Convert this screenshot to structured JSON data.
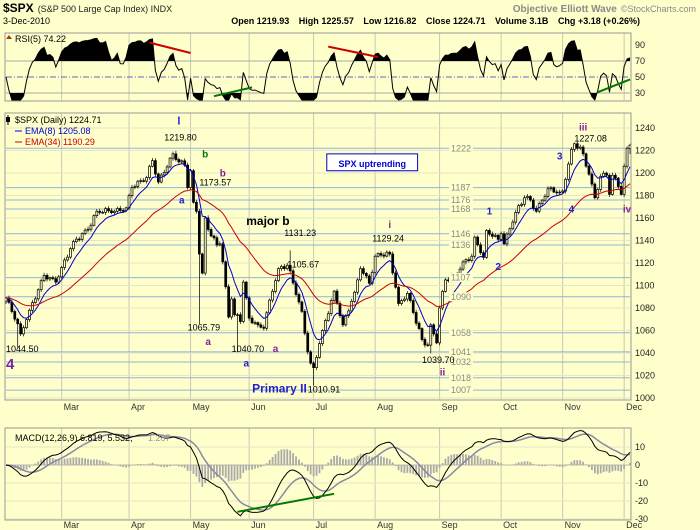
{
  "header": {
    "symbol": "$SPX",
    "description": "(S&P 500 Large Cap Index) INDX",
    "date": "3-Dec-2010",
    "quote_items": [
      {
        "label": "Open",
        "value": "1219.93"
      },
      {
        "label": "High",
        "value": "1225.57"
      },
      {
        "label": "Low",
        "value": "1216.82"
      },
      {
        "label": "Close",
        "value": "1224.71"
      },
      {
        "label": "Volume",
        "value": "3.1B"
      },
      {
        "label": "Chg",
        "value": "+3.18 (+0.26%)"
      }
    ],
    "watermark": "Objective Elliott Wave",
    "credit": "©StockCharts.com"
  },
  "colors": {
    "background": "#FFFFCC",
    "panel_border": "#999999",
    "grid_vertical": "#C9C9B2",
    "grid_horizontal": "#E6E6C6",
    "pivot_line": "#8FB4D9",
    "pivot_label": "#888888",
    "candle": "#000000",
    "ema8": "#0000CC",
    "ema34": "#CC0000",
    "rsi_line": "#000000",
    "rsi_fill": "#000000",
    "macd_line": "#000000",
    "macd_signal": "#8888AA",
    "macd_hist": "#AAAAAA",
    "wave_blue": "#2222CC",
    "wave_green": "#007700",
    "wave_purple": "#882299"
  },
  "chart_data": [
    {
      "panel": "rsi",
      "type": "line",
      "title": "RSI(5) 74.22",
      "last_value": 74.22,
      "ylim": [
        0,
        100
      ],
      "yticks": [
        90,
        70,
        50,
        30
      ],
      "overbought": 70,
      "oversold": 30,
      "midline": 50,
      "trendlines": [
        {
          "color": "#CC0000",
          "points": [
            [
              49,
              93
            ],
            [
              63,
              80
            ]
          ]
        },
        {
          "color": "#CC0000",
          "points": [
            [
              110,
              88
            ],
            [
              127,
              75
            ]
          ]
        },
        {
          "color": "#007700",
          "points": [
            [
              71,
              26
            ],
            [
              84,
              37
            ]
          ]
        },
        {
          "color": "#007700",
          "points": [
            [
              202,
              31
            ],
            [
              213,
              47
            ]
          ]
        }
      ]
    },
    {
      "panel": "price",
      "type": "candlestick",
      "title": "$SPX (Daily) 1224.71",
      "legend": [
        {
          "label": "$SPX (Daily) 1224.71",
          "color": "#000000"
        },
        {
          "label": "EMA(8) 1205.08",
          "color": "#0000CC"
        },
        {
          "label": "EMA(34) 1190.29",
          "color": "#CC0000"
        }
      ],
      "ema_periods": [
        8,
        34
      ],
      "ylim": [
        1000,
        1240
      ],
      "ytick_step": 20,
      "total_days": 214,
      "months": {
        "labels": [
          "Mar",
          "Apr",
          "May",
          "Jun",
          "Jul",
          "Aug",
          "Sep",
          "Oct",
          "Nov",
          "Dec"
        ],
        "day_index": [
          19,
          42,
          63,
          83,
          105,
          126,
          148,
          169,
          190,
          211
        ]
      },
      "anchors": [
        [
          0,
          1089
        ],
        [
          4,
          1066
        ],
        [
          5,
          1057
        ],
        [
          8,
          1078
        ],
        [
          13,
          1109
        ],
        [
          17,
          1103
        ],
        [
          19,
          1116
        ],
        [
          23,
          1139
        ],
        [
          28,
          1150
        ],
        [
          31,
          1166
        ],
        [
          37,
          1166
        ],
        [
          41,
          1169
        ],
        [
          43,
          1187
        ],
        [
          48,
          1196
        ],
        [
          50,
          1211
        ],
        [
          52,
          1192
        ],
        [
          57,
          1217
        ],
        [
          58,
          1212
        ],
        [
          61,
          1207
        ],
        [
          62,
          1187
        ],
        [
          63,
          1202
        ],
        [
          64,
          1174
        ],
        [
          65,
          1166
        ],
        [
          66,
          1128
        ],
        [
          67,
          1111
        ],
        [
          68,
          1160
        ],
        [
          70,
          1144
        ],
        [
          72,
          1136
        ],
        [
          73,
          1137
        ],
        [
          74,
          1121
        ],
        [
          76,
          1072
        ],
        [
          77,
          1088
        ],
        [
          78,
          1074
        ],
        [
          79,
          1074
        ],
        [
          80,
          1068
        ],
        [
          81,
          1103
        ],
        [
          82,
          1089
        ],
        [
          83,
          1071
        ],
        [
          86,
          1065
        ],
        [
          88,
          1062
        ],
        [
          90,
          1087
        ],
        [
          93,
          1115
        ],
        [
          96,
          1118
        ],
        [
          97,
          1113
        ],
        [
          99,
          1092
        ],
        [
          101,
          1077
        ],
        [
          103,
          1041
        ],
        [
          104,
          1031
        ],
        [
          105,
          1027
        ],
        [
          108,
          1060
        ],
        [
          112,
          1095
        ],
        [
          115,
          1065
        ],
        [
          119,
          1094
        ],
        [
          121,
          1115
        ],
        [
          124,
          1102
        ],
        [
          126,
          1126
        ],
        [
          128,
          1127
        ],
        [
          131,
          1128
        ],
        [
          134,
          1084
        ],
        [
          137,
          1093
        ],
        [
          139,
          1076
        ],
        [
          142,
          1052
        ],
        [
          144,
          1047
        ],
        [
          145,
          1065
        ],
        [
          147,
          1049
        ],
        [
          148,
          1080
        ],
        [
          150,
          1105
        ],
        [
          154,
          1110
        ],
        [
          156,
          1121
        ],
        [
          159,
          1126
        ],
        [
          160,
          1143
        ],
        [
          163,
          1125
        ],
        [
          164,
          1149
        ],
        [
          168,
          1141
        ],
        [
          169,
          1146
        ],
        [
          170,
          1137
        ],
        [
          174,
          1165
        ],
        [
          177,
          1178
        ],
        [
          179,
          1176
        ],
        [
          181,
          1166
        ],
        [
          185,
          1186
        ],
        [
          189,
          1183
        ],
        [
          190,
          1184
        ],
        [
          193,
          1221
        ],
        [
          194,
          1226
        ],
        [
          196,
          1223
        ],
        [
          199,
          1199
        ],
        [
          201,
          1178
        ],
        [
          203,
          1197
        ],
        [
          205,
          1198
        ],
        [
          206,
          1181
        ],
        [
          207,
          1198
        ],
        [
          209,
          1188
        ],
        [
          210,
          1181
        ],
        [
          211,
          1206
        ],
        [
          212,
          1222
        ],
        [
          213,
          1224.71
        ]
      ],
      "key_extremes": [
        {
          "day": 4,
          "low": 1044.5
        },
        {
          "day": 58,
          "high": 1219.8
        },
        {
          "day": 66,
          "low": 1065.79
        },
        {
          "day": 79,
          "low": 1040.7
        },
        {
          "day": 97,
          "high": 1131.23
        },
        {
          "day": 105,
          "low": 1010.91
        },
        {
          "day": 131,
          "high": 1129.24
        },
        {
          "day": 145,
          "low": 1039.7
        },
        {
          "day": 194,
          "high": 1227.08
        },
        {
          "day": 213,
          "high": 1225.57,
          "low": 1216.82
        }
      ],
      "pivot_lines": [
        1222,
        1187,
        1176,
        1168,
        1146,
        1136,
        1107,
        1090,
        1058,
        1041,
        1032,
        1018,
        1007
      ],
      "annotations": [
        {
          "text": "l",
          "d": 59,
          "p": 1243,
          "color": "#2222CC",
          "size": 11,
          "bold": true
        },
        {
          "text": "1219.80",
          "d": 54,
          "p": 1229,
          "color": "#000000",
          "size": 9
        },
        {
          "text": "b",
          "d": 68,
          "p": 1214,
          "color": "#007700",
          "size": 10,
          "bold": true
        },
        {
          "text": "b",
          "d": 74,
          "p": 1197,
          "color": "#882299",
          "size": 10,
          "bold": true
        },
        {
          "text": "a",
          "d": 60,
          "p": 1173,
          "color": "#2222CC",
          "size": 10,
          "bold": true
        },
        {
          "text": "1173.57",
          "d": 66,
          "p": 1189,
          "color": "#000000",
          "size": 9
        },
        {
          "text": "major b",
          "d": 82,
          "p": 1154,
          "color": "#000000",
          "size": 12,
          "bold": true
        },
        {
          "text": "1131.23",
          "d": 95,
          "p": 1144,
          "color": "#000000",
          "size": 9
        },
        {
          "text": "1105.67",
          "d": 96,
          "p": 1116,
          "color": "#000000",
          "size": 9
        },
        {
          "text": "1065.79",
          "d": 62,
          "p": 1060,
          "color": "#000000",
          "size": 9
        },
        {
          "text": "a",
          "d": 69,
          "p": 1047,
          "color": "#882299",
          "size": 10,
          "bold": true
        },
        {
          "text": "1040.70",
          "d": 77,
          "p": 1041,
          "color": "#000000",
          "size": 9
        },
        {
          "text": "a",
          "d": 92,
          "p": 1041,
          "color": "#882299",
          "size": 10,
          "bold": true
        },
        {
          "text": "a",
          "d": 82,
          "p": 1028,
          "color": "#2222CC",
          "size": 10,
          "bold": true
        },
        {
          "text": "Primary II",
          "d": 84,
          "p": 1005,
          "color": "#2222CC",
          "size": 12,
          "bold": true
        },
        {
          "text": "1010.91",
          "d": 103,
          "p": 1005,
          "color": "#000000",
          "size": 9
        },
        {
          "text": "i",
          "d": 131,
          "p": 1151,
          "color": "#882299",
          "size": 10,
          "bold": true
        },
        {
          "text": "1129.24",
          "d": 125,
          "p": 1139,
          "color": "#000000",
          "size": 9
        },
        {
          "text": "ii",
          "d": 149,
          "p": 1020,
          "color": "#882299",
          "size": 10,
          "bold": true
        },
        {
          "text": "1039.70",
          "d": 142,
          "p": 1031,
          "color": "#000000",
          "size": 9
        },
        {
          "text": "1",
          "d": 165,
          "p": 1163,
          "color": "#2222CC",
          "size": 10,
          "bold": true
        },
        {
          "text": "2",
          "d": 168,
          "p": 1114,
          "color": "#2222CC",
          "size": 10,
          "bold": true
        },
        {
          "text": "3",
          "d": 189,
          "p": 1212,
          "color": "#2222CC",
          "size": 10,
          "bold": true
        },
        {
          "text": "4",
          "d": 193,
          "p": 1165,
          "color": "#2222CC",
          "size": 10,
          "bold": true
        },
        {
          "text": "iii",
          "d": 197,
          "p": 1238,
          "color": "#882299",
          "size": 10,
          "bold": true,
          "anchor": "middle"
        },
        {
          "text": "1227.08",
          "d": 194,
          "p": 1228,
          "color": "#000000",
          "size": 9
        },
        {
          "text": "iv",
          "d": 212,
          "p": 1165,
          "color": "#882299",
          "size": 10,
          "bold": true
        },
        {
          "text": "4",
          "d": 0,
          "p": 1026,
          "color": "#7722AA",
          "size": 15,
          "bold": true,
          "anchor": "start"
        },
        {
          "text": "1044.50",
          "d": 0,
          "p": 1041,
          "color": "#000000",
          "size": 9
        }
      ],
      "callout_box": {
        "text": "SPX uptrending",
        "color": "#0000CC",
        "d0": 109.5,
        "d1": 140.5,
        "p_top": 1217,
        "p_bot": 1202
      }
    },
    {
      "panel": "macd",
      "type": "macd",
      "title": "MACD(12,26,9) 6.819, 5.532,",
      "hist_value": "1.287",
      "params": [
        12,
        26,
        9
      ],
      "last_values": {
        "macd": 6.819,
        "signal": 5.532,
        "hist": 1.287
      },
      "yticks": [
        10,
        0,
        -10,
        -20,
        -30
      ],
      "trendlines": [
        {
          "color": "#007700",
          "points": [
            [
              79,
              -26
            ],
            [
              112,
              -16
            ]
          ]
        }
      ]
    }
  ]
}
